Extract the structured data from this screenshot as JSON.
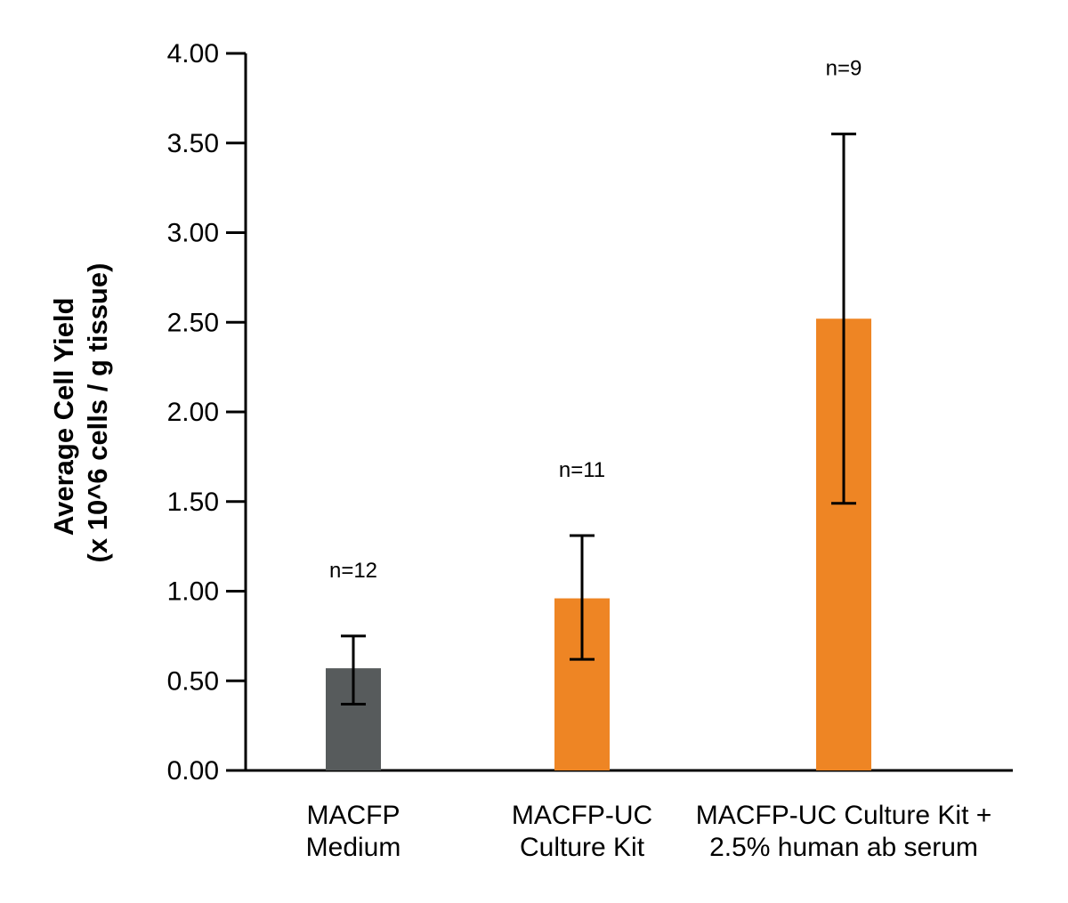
{
  "chart_data": {
    "type": "bar",
    "ylabel_lines": [
      "Average Cell Yield",
      "(x 10^6 cells / g  tissue)"
    ],
    "ylim": [
      0,
      4
    ],
    "yticks": [
      "0.00",
      "0.50",
      "1.00",
      "1.50",
      "2.00",
      "2.50",
      "3.00",
      "3.50",
      "4.00"
    ],
    "grid": false,
    "categories": [
      {
        "lines": [
          "MACFP",
          "Medium"
        ]
      },
      {
        "lines": [
          "MACFP-UC",
          "Culture Kit"
        ]
      },
      {
        "lines": [
          "MACFP-UC Culture Kit +",
          "2.5% human ab serum"
        ]
      }
    ],
    "values": [
      0.57,
      0.96,
      2.52
    ],
    "error_low": [
      0.37,
      0.62,
      1.49
    ],
    "error_high": [
      0.75,
      1.31,
      3.55
    ],
    "annotations": [
      "n=12",
      "n=11",
      "n=9"
    ],
    "colors": [
      "#575b5c",
      "#ee8524",
      "#ee8524"
    ]
  }
}
